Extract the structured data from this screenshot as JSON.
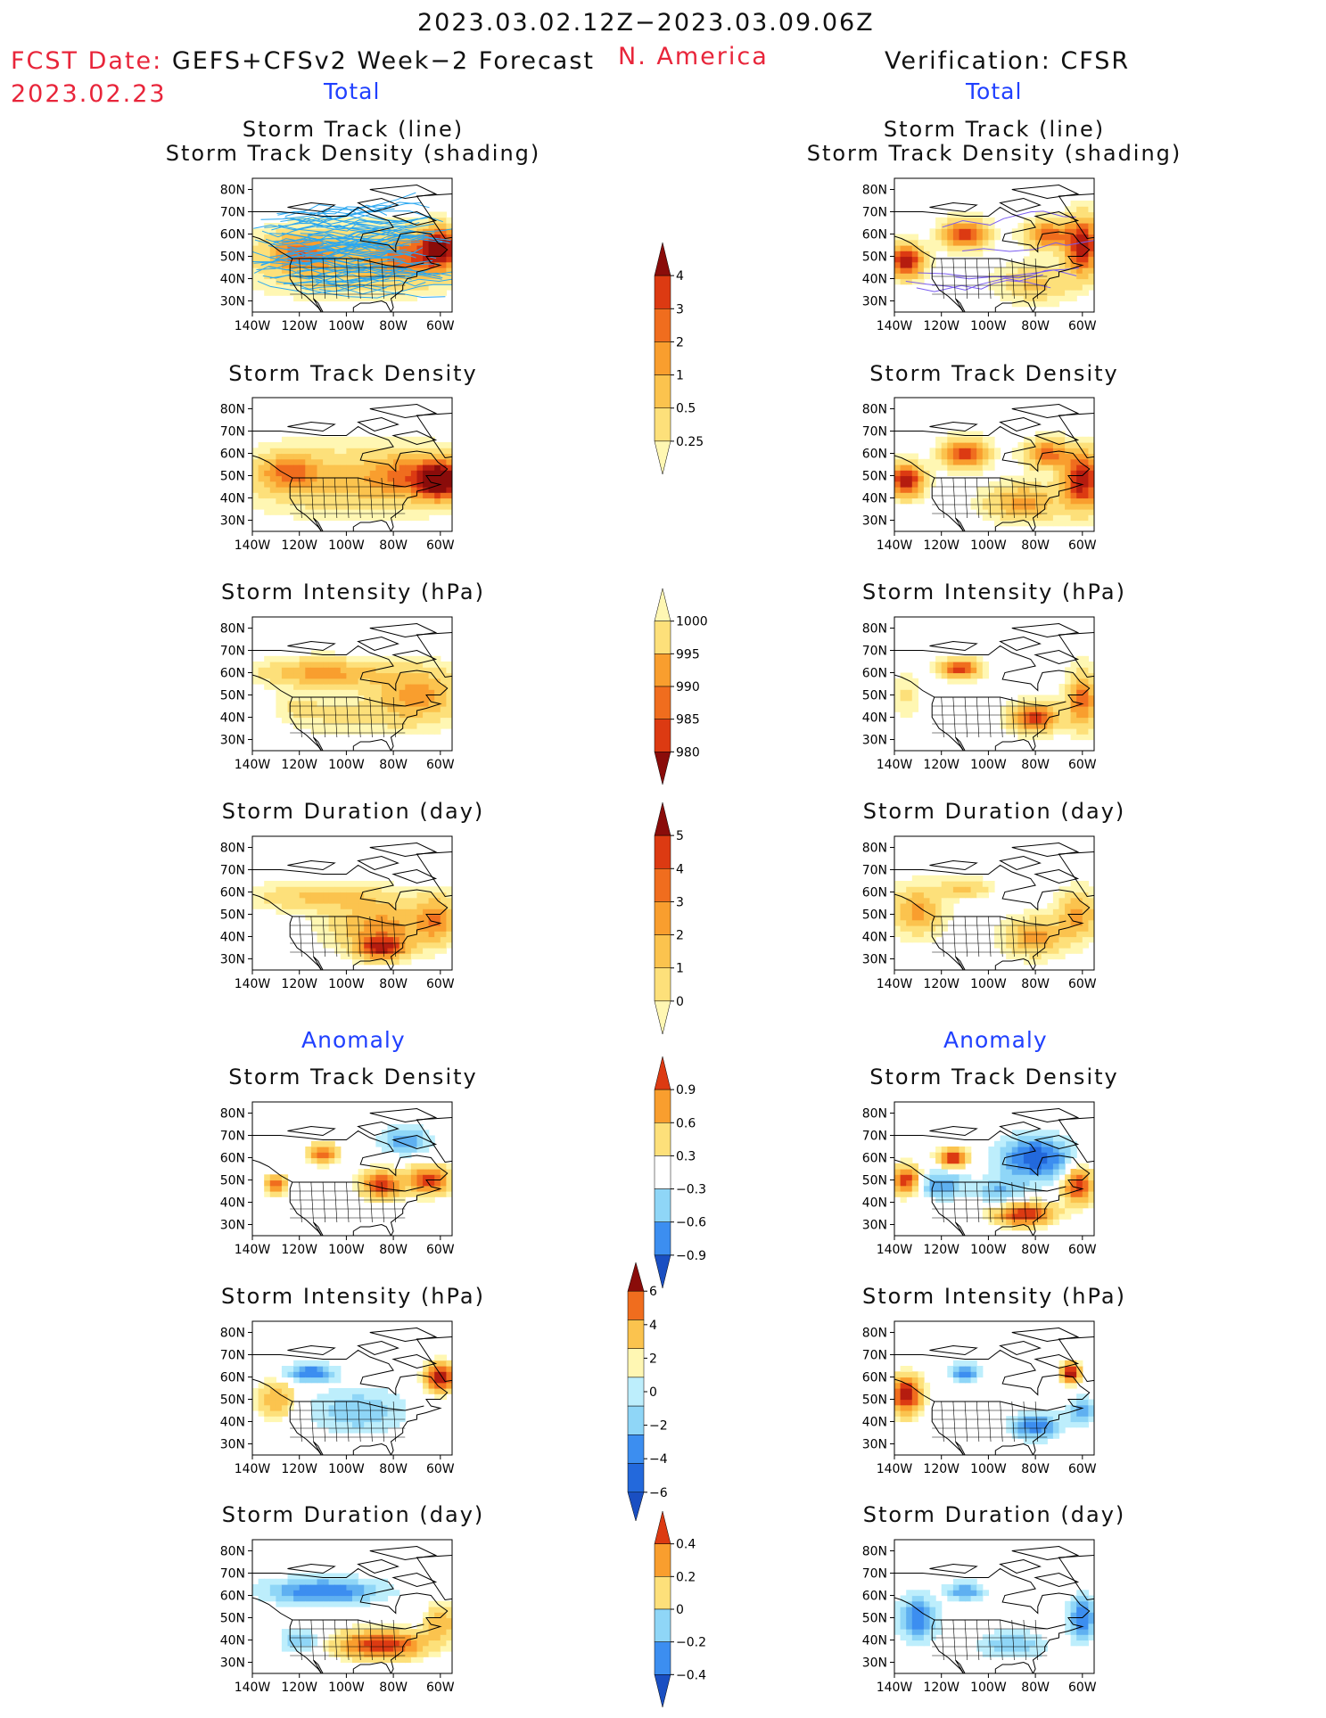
{
  "header": {
    "period": "2023.03.02.12Z−2023.03.09.06Z",
    "fcst_label": "FCST Date: ",
    "fcst_model": "GEFS+CFSv2 Week−2 Forecast",
    "fcst_date": "2023.02.23",
    "region": "N. America",
    "verification": "Verification: CFSR"
  },
  "sections": {
    "total": "Total",
    "anomaly": "Anomaly"
  },
  "panel_titles": {
    "track_line": "Storm Track (line)",
    "track_shading": "Storm Track Density (shading)",
    "density": "Storm Track Density",
    "intensity": "Storm Intensity (hPa)",
    "duration": "Storm Duration (day)"
  },
  "axes": {
    "lat_labels": [
      "80N",
      "70N",
      "60N",
      "50N",
      "40N",
      "30N"
    ],
    "lon_labels": [
      "140W",
      "120W",
      "100W",
      "80W",
      "60W"
    ]
  },
  "colors": {
    "warm": [
      "#fff7b3",
      "#fde07a",
      "#fbc34e",
      "#f99e2e",
      "#f06d1e",
      "#dc3a12",
      "#b51c0f",
      "#8a0c0a"
    ],
    "cool": [
      "#bdeefc",
      "#8fd6f7",
      "#5fb0f1",
      "#3c8ef0",
      "#2369dc",
      "#1a4fc2"
    ],
    "track_line": "#2aa7f0",
    "track_line_verif": "#7a5cf0"
  },
  "colorbars": [
    {
      "name": "total-density",
      "labels": [
        "4",
        "3",
        "2",
        "1",
        "0.5",
        "0.25"
      ]
    },
    {
      "name": "total-intensity",
      "labels": [
        "1000",
        "995",
        "990",
        "985",
        "980"
      ]
    },
    {
      "name": "total-duration",
      "labels": [
        "5",
        "4",
        "3",
        "2",
        "1",
        "0"
      ]
    },
    {
      "name": "anom-density",
      "labels": [
        "0.9",
        "0.6",
        "0.3",
        "−0.3",
        "−0.6",
        "−0.9"
      ]
    },
    {
      "name": "anom-intensity",
      "labels": [
        "6",
        "4",
        "2",
        "0",
        "−2",
        "−4",
        "−6"
      ]
    },
    {
      "name": "anom-duration",
      "labels": [
        "0.4",
        "0.2",
        "0",
        "−0.2",
        "−0.4"
      ]
    }
  ],
  "map_data": {
    "extent": {
      "lon": [
        -140,
        -55
      ],
      "lat": [
        25,
        85
      ]
    },
    "panels": [
      {
        "id": "fc-track",
        "scale": "warm",
        "blobs": [
          [
            -100,
            48,
            40,
            14,
            2
          ],
          [
            -70,
            50,
            18,
            10,
            3
          ],
          [
            -120,
            52,
            12,
            8,
            3
          ],
          [
            -60,
            55,
            8,
            8,
            5
          ]
        ]
      },
      {
        "id": "vf-track",
        "scale": "warm",
        "blobs": [
          [
            -135,
            48,
            7,
            7,
            6
          ],
          [
            -110,
            60,
            9,
            6,
            5
          ],
          [
            -75,
            60,
            9,
            6,
            4
          ],
          [
            -60,
            55,
            7,
            12,
            6
          ],
          [
            -80,
            38,
            15,
            8,
            2
          ]
        ]
      },
      {
        "id": "fc-density",
        "scale": "warm",
        "blobs": [
          [
            -100,
            48,
            40,
            14,
            2
          ],
          [
            -70,
            50,
            18,
            10,
            3
          ],
          [
            -125,
            52,
            12,
            8,
            3
          ],
          [
            -60,
            48,
            8,
            8,
            6
          ]
        ]
      },
      {
        "id": "vf-density",
        "scale": "warm",
        "blobs": [
          [
            -135,
            48,
            7,
            7,
            6
          ],
          [
            -110,
            60,
            9,
            6,
            5
          ],
          [
            -75,
            60,
            9,
            6,
            4
          ],
          [
            -60,
            48,
            8,
            12,
            6
          ],
          [
            -85,
            38,
            15,
            8,
            3
          ]
        ]
      },
      {
        "id": "fc-intensity",
        "scale": "warm",
        "blobs": [
          [
            -110,
            60,
            25,
            6,
            3
          ],
          [
            -70,
            50,
            18,
            12,
            3
          ],
          [
            -100,
            40,
            20,
            8,
            1
          ],
          [
            -120,
            45,
            10,
            6,
            1
          ]
        ]
      },
      {
        "id": "vf-intensity",
        "scale": "warm",
        "blobs": [
          [
            -135,
            50,
            6,
            10,
            1
          ],
          [
            -112,
            62,
            8,
            4,
            5
          ],
          [
            -80,
            40,
            10,
            6,
            5
          ],
          [
            -60,
            48,
            6,
            12,
            4
          ]
        ]
      },
      {
        "id": "fc-duration",
        "scale": "warm",
        "blobs": [
          [
            -110,
            58,
            28,
            6,
            2
          ],
          [
            -85,
            45,
            20,
            10,
            3
          ],
          [
            -85,
            35,
            10,
            5,
            5
          ],
          [
            -62,
            48,
            8,
            10,
            3
          ]
        ]
      },
      {
        "id": "vf-duration",
        "scale": "warm",
        "blobs": [
          [
            -130,
            52,
            10,
            10,
            3
          ],
          [
            -110,
            62,
            10,
            4,
            2
          ],
          [
            -80,
            40,
            12,
            8,
            3
          ],
          [
            -62,
            50,
            8,
            10,
            3
          ]
        ]
      },
      {
        "id": "fc-anom-density",
        "scale": "div",
        "blobs": [
          [
            -110,
            62,
            6,
            4,
            5
          ],
          [
            -85,
            48,
            8,
            6,
            6
          ],
          [
            -65,
            50,
            8,
            6,
            6
          ],
          [
            -75,
            68,
            10,
            6,
            -4
          ],
          [
            -130,
            48,
            4,
            4,
            5
          ]
        ]
      },
      {
        "id": "vf-anom-density",
        "scale": "div",
        "blobs": [
          [
            -80,
            60,
            15,
            10,
            -6
          ],
          [
            -95,
            45,
            10,
            6,
            -3
          ],
          [
            -120,
            48,
            10,
            6,
            -4
          ],
          [
            -135,
            50,
            6,
            6,
            6
          ],
          [
            -115,
            60,
            6,
            4,
            6
          ],
          [
            -85,
            35,
            12,
            5,
            6
          ],
          [
            -62,
            48,
            6,
            8,
            6
          ]
        ]
      },
      {
        "id": "fc-anom-intensity",
        "scale": "div",
        "blobs": [
          [
            -95,
            45,
            20,
            10,
            -3
          ],
          [
            -115,
            62,
            10,
            4,
            -5
          ],
          [
            -60,
            60,
            6,
            6,
            7
          ],
          [
            -130,
            50,
            8,
            8,
            3
          ]
        ]
      },
      {
        "id": "vf-anom-intensity",
        "scale": "div",
        "blobs": [
          [
            -80,
            38,
            10,
            6,
            -5
          ],
          [
            -135,
            52,
            6,
            8,
            7
          ],
          [
            -110,
            62,
            6,
            4,
            -5
          ],
          [
            -65,
            62,
            4,
            4,
            7
          ],
          [
            -60,
            45,
            6,
            6,
            -4
          ]
        ]
      },
      {
        "id": "fc-anom-duration",
        "scale": "div",
        "blobs": [
          [
            -110,
            62,
            25,
            6,
            -5
          ],
          [
            -85,
            38,
            18,
            6,
            6
          ],
          [
            -120,
            40,
            8,
            6,
            -3
          ],
          [
            -60,
            48,
            6,
            8,
            3
          ]
        ]
      },
      {
        "id": "vf-anom-duration",
        "scale": "div",
        "blobs": [
          [
            -130,
            50,
            8,
            10,
            -5
          ],
          [
            -60,
            50,
            6,
            10,
            -5
          ],
          [
            -90,
            38,
            15,
            6,
            -3
          ],
          [
            -110,
            62,
            8,
            4,
            -4
          ]
        ]
      }
    ]
  }
}
